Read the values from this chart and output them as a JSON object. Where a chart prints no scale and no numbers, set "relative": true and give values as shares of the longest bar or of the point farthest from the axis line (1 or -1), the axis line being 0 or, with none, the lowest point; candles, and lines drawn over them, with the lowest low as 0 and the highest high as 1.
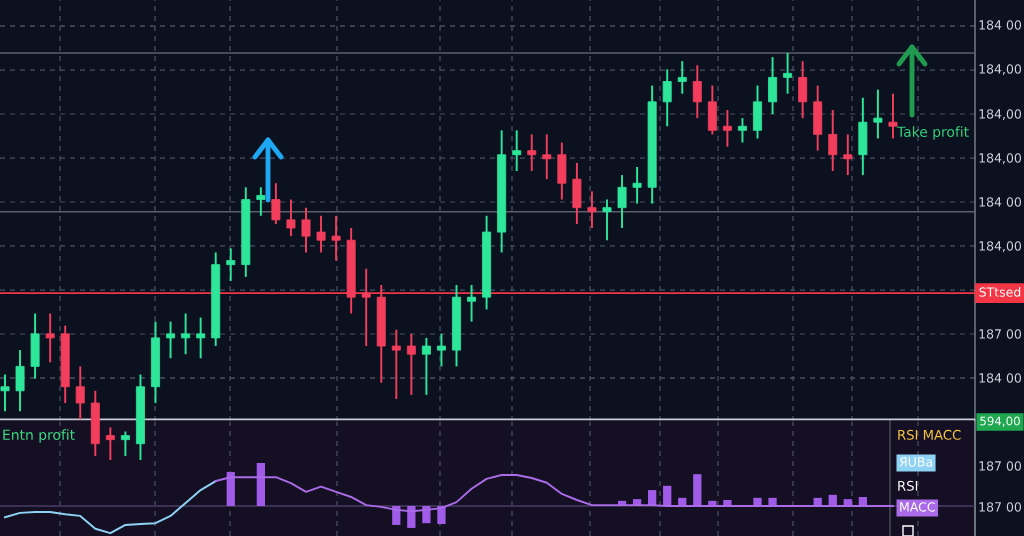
{
  "chart_data": [
    {
      "type": "candlestick",
      "relative": true,
      "grid": true,
      "categories": [
        null,
        null,
        null,
        null,
        null,
        null,
        null,
        null,
        null,
        null,
        null,
        null,
        null,
        null,
        null,
        null,
        null,
        null,
        null,
        null,
        null,
        null,
        null,
        null,
        null,
        null,
        null,
        null,
        null,
        null,
        null,
        null,
        null,
        null,
        null,
        null,
        null,
        null,
        null,
        null,
        null,
        null,
        null,
        null,
        null,
        null,
        null,
        null,
        null,
        null,
        null,
        null,
        null,
        null,
        null,
        null,
        null,
        null,
        null,
        null
      ],
      "ohlc": [
        [
          0.17,
          0.21,
          0.12,
          0.18
        ],
        [
          0.17,
          0.27,
          0.12,
          0.23
        ],
        [
          0.23,
          0.36,
          0.2,
          0.31
        ],
        [
          0.31,
          0.36,
          0.24,
          0.3
        ],
        [
          0.31,
          0.33,
          0.14,
          0.18
        ],
        [
          0.18,
          0.23,
          0.1,
          0.14
        ],
        [
          0.14,
          0.17,
          0.01,
          0.04
        ],
        [
          0.06,
          0.08,
          0,
          0.05
        ],
        [
          0.05,
          0.07,
          0.01,
          0.06
        ],
        [
          0.04,
          0.21,
          0,
          0.18
        ],
        [
          0.18,
          0.34,
          0.14,
          0.3
        ],
        [
          0.3,
          0.34,
          0.25,
          0.31
        ],
        [
          0.3,
          0.36,
          0.26,
          0.31
        ],
        [
          0.3,
          0.35,
          0.25,
          0.31
        ],
        [
          0.3,
          0.51,
          0.28,
          0.48
        ],
        [
          0.48,
          0.52,
          0.44,
          0.49
        ],
        [
          0.48,
          0.67,
          0.45,
          0.64
        ],
        [
          0.64,
          0.67,
          0.6,
          0.65
        ],
        [
          0.64,
          0.68,
          0.58,
          0.59
        ],
        [
          0.59,
          0.64,
          0.55,
          0.57
        ],
        [
          0.59,
          0.62,
          0.51,
          0.55
        ],
        [
          0.56,
          0.6,
          0.51,
          0.54
        ],
        [
          0.55,
          0.6,
          0.49,
          0.54
        ],
        [
          0.54,
          0.57,
          0.36,
          0.4
        ],
        [
          0.41,
          0.47,
          0.28,
          0.4
        ],
        [
          0.4,
          0.43,
          0.19,
          0.28
        ],
        [
          0.28,
          0.32,
          0.15,
          0.27
        ],
        [
          0.28,
          0.31,
          0.16,
          0.26
        ],
        [
          0.26,
          0.3,
          0.16,
          0.28
        ],
        [
          0.27,
          0.31,
          0.23,
          0.28
        ],
        [
          0.27,
          0.43,
          0.23,
          0.4
        ],
        [
          0.39,
          0.43,
          0.34,
          0.4
        ],
        [
          0.4,
          0.6,
          0.37,
          0.56
        ],
        [
          0.56,
          0.81,
          0.51,
          0.75
        ],
        [
          0.75,
          0.81,
          0.71,
          0.76
        ],
        [
          0.76,
          0.8,
          0.71,
          0.75
        ],
        [
          0.75,
          0.8,
          0.69,
          0.74
        ],
        [
          0.75,
          0.78,
          0.64,
          0.68
        ],
        [
          0.69,
          0.73,
          0.58,
          0.62
        ],
        [
          0.62,
          0.66,
          0.57,
          0.61
        ],
        [
          0.61,
          0.64,
          0.54,
          0.62
        ],
        [
          0.62,
          0.7,
          0.57,
          0.67
        ],
        [
          0.67,
          0.72,
          0.63,
          0.68
        ],
        [
          0.67,
          0.92,
          0.63,
          0.88
        ],
        [
          0.88,
          0.96,
          0.82,
          0.93
        ],
        [
          0.93,
          0.98,
          0.9,
          0.94
        ],
        [
          0.93,
          0.97,
          0.84,
          0.88
        ],
        [
          0.88,
          0.92,
          0.8,
          0.81
        ],
        [
          0.82,
          0.86,
          0.77,
          0.81
        ],
        [
          0.81,
          0.84,
          0.78,
          0.82
        ],
        [
          0.81,
          0.92,
          0.79,
          0.88
        ],
        [
          0.88,
          0.99,
          0.85,
          0.94
        ],
        [
          0.94,
          1,
          0.9,
          0.95
        ],
        [
          0.94,
          0.98,
          0.84,
          0.88
        ],
        [
          0.88,
          0.92,
          0.76,
          0.8
        ],
        [
          0.8,
          0.86,
          0.71,
          0.75
        ],
        [
          0.75,
          0.8,
          0.7,
          0.74
        ],
        [
          0.75,
          0.89,
          0.7,
          0.83
        ],
        [
          0.83,
          0.91,
          0.79,
          0.84
        ],
        [
          0.83,
          0.9,
          0.79,
          0.82
        ]
      ],
      "ref_lines": [
        {
          "axis": "y",
          "value": 0.41,
          "label": "STtsed",
          "color": "#f23645"
        },
        {
          "axis": "y",
          "value": 1.0,
          "color": "#5d606b"
        },
        {
          "axis": "y",
          "value": 0.61,
          "color": "#5d606b"
        },
        {
          "axis": "y",
          "value": 0.1,
          "color": "#c8ccd4"
        }
      ],
      "annotations": [
        "Take profit",
        "Entn profit",
        "184 00",
        "184,00",
        "184,00",
        "184,00",
        "184 00",
        "184,00",
        "187 00",
        "184 00",
        "594,00"
      ]
    },
    {
      "type": "line",
      "relative": true,
      "grid": "x",
      "legend": "right",
      "legend_title": "RSI MACC",
      "categories": [
        null,
        null,
        null,
        null,
        null,
        null,
        null,
        null,
        null,
        null,
        null,
        null,
        null,
        null,
        null,
        null,
        null,
        null,
        null,
        null,
        null,
        null,
        null,
        null,
        null,
        null,
        null,
        null,
        null,
        null,
        null,
        null,
        null,
        null,
        null,
        null,
        null,
        null,
        null,
        null,
        null,
        null,
        null,
        null,
        null,
        null,
        null,
        null,
        null,
        null,
        null,
        null,
        null,
        null,
        null,
        null,
        null,
        null,
        null,
        null
      ],
      "series": [
        {
          "name": "ЯUBa",
          "type": "line",
          "color": "#8fd3f4",
          "values": [
            -0.26,
            -0.16,
            -0.14,
            -0.14,
            -0.19,
            -0.23,
            -0.53,
            -0.63,
            -0.44,
            -0.42,
            -0.4,
            -0.23,
            0.07,
            0.37,
            0.58,
            null,
            null,
            null,
            null,
            null,
            null,
            null,
            null,
            null,
            null,
            null,
            null,
            null,
            null,
            null,
            null,
            null,
            null,
            null,
            null,
            null,
            null,
            null,
            null,
            null,
            null,
            null,
            null,
            null,
            null,
            null,
            null,
            null,
            null,
            null,
            null,
            null,
            null,
            null,
            null,
            null,
            null,
            null,
            null,
            null
          ]
        },
        {
          "name": "MACC",
          "type": "line",
          "color": "#a96be8",
          "values": [
            null,
            null,
            null,
            null,
            null,
            null,
            null,
            null,
            null,
            null,
            null,
            null,
            null,
            null,
            0.58,
            0.67,
            0.67,
            0.67,
            0.67,
            0.53,
            0.33,
            0.45,
            0.33,
            0.21,
            0.02,
            -0.02,
            -0.09,
            -0.12,
            -0.09,
            -0.05,
            0.09,
            0.4,
            0.63,
            0.72,
            0.72,
            0.65,
            0.54,
            0.28,
            0.14,
            0.02,
            0.02,
            0.02,
            0.02,
            0.02,
            0,
            0,
            0,
            0,
            0,
            0,
            0,
            0,
            0,
            0,
            0,
            0,
            0,
            0,
            0,
            0
          ]
        },
        {
          "type": "bar",
          "color": "#a05ce8",
          "values": [
            null,
            null,
            null,
            null,
            null,
            null,
            null,
            null,
            null,
            null,
            null,
            null,
            null,
            null,
            null,
            0.79,
            null,
            1.0,
            null,
            null,
            null,
            null,
            null,
            null,
            null,
            null,
            -0.44,
            -0.51,
            -0.4,
            -0.42,
            null,
            null,
            null,
            null,
            null,
            null,
            null,
            null,
            null,
            null,
            null,
            0.12,
            0.16,
            0.37,
            0.47,
            0.19,
            0.74,
            0.12,
            0.14,
            null,
            0.19,
            0.19,
            null,
            null,
            0.19,
            0.26,
            0.16,
            0.21,
            null,
            null
          ]
        }
      ],
      "ref_lines": [
        {
          "axis": "y",
          "value": 0,
          "color": "#4a3d66"
        }
      ],
      "annotations": [
        "RSI",
        "187 00",
        "187 00"
      ]
    }
  ]
}
